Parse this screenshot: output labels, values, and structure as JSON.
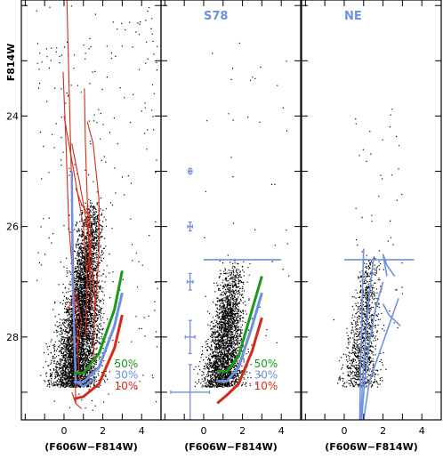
{
  "chart_data": {
    "type": "scatter",
    "ylabel": "F814W",
    "xlabel": "(F606W−F814W)",
    "xlim": [
      -2.2,
      5.0
    ],
    "ylim": [
      29.5,
      21.9
    ],
    "x_ticks": [
      -2,
      -1,
      0,
      1,
      2,
      3,
      4,
      5
    ],
    "x_tick_labels": [
      {
        "value": 0,
        "label": "0"
      },
      {
        "value": 2,
        "label": "2"
      },
      {
        "value": 4,
        "label": "4"
      }
    ],
    "y_ticks": [
      22,
      23,
      24,
      25,
      26,
      27,
      28,
      29
    ],
    "y_tick_labels": [
      {
        "value": 24,
        "label": "24"
      },
      {
        "value": 26,
        "label": "26"
      },
      {
        "value": 28,
        "label": "28"
      }
    ],
    "colors": {
      "points": "#000000",
      "c50": "#1a9a1a",
      "c30": "#6f8fdf",
      "c10": "#d42a1a",
      "panel_label": "#6f8fdf",
      "errorbars": "#6f8fdf",
      "tracks": "#d42a1a",
      "ne_tracks": "#7090e0"
    },
    "panels": [
      {
        "title": "",
        "dense_cloud": {
          "x_center": 0.9,
          "y_min": 25.5,
          "y_max": 28.9,
          "spread": 0.55
        },
        "sparse_points": {
          "x_range": [
            -1.5,
            4.8
          ],
          "y_range": [
            22.0,
            29.4
          ]
        },
        "completeness": [
          {
            "label": "50%",
            "color_key": "c50",
            "x": [
              0.5,
              1.0,
              1.8,
              2.6,
              3.0
            ],
            "y": [
              28.65,
              28.65,
              28.3,
              27.5,
              26.8
            ]
          },
          {
            "label": "30%",
            "color_key": "c30",
            "x": [
              0.5,
              1.0,
              1.8,
              2.6,
              3.0
            ],
            "y": [
              28.82,
              28.82,
              28.55,
              27.8,
              27.2
            ]
          },
          {
            "label": "10%",
            "color_key": "c10",
            "x": [
              0.5,
              1.0,
              1.8,
              2.6,
              3.0
            ],
            "y": [
              29.12,
              29.08,
              28.85,
              28.2,
              27.6
            ]
          }
        ],
        "blue_lines": [
          {
            "x": [
              0.4,
              0.45,
              0.6,
              1.0,
              1.6
            ],
            "y": [
              25.0,
              27.0,
              28.8,
              28.9,
              28.75
            ]
          }
        ],
        "legend": [
          {
            "label": "50%",
            "color_key": "c50",
            "x": 2.6,
            "y": 28.55
          },
          {
            "label": "30%",
            "color_key": "c30",
            "x": 2.6,
            "y": 28.75
          },
          {
            "label": "10%",
            "color_key": "c10",
            "x": 2.6,
            "y": 28.95
          }
        ]
      },
      {
        "title": "S78",
        "dense_cloud": {
          "x_center": 1.3,
          "y_min": 26.6,
          "y_max": 28.9,
          "spread": 0.5
        },
        "sparse_points": {
          "x_range": [
            0.0,
            4.5
          ],
          "y_range": [
            22.5,
            28.5
          ]
        },
        "horizontal_line": {
          "x": [
            0.0,
            4.0
          ],
          "y": 26.6
        },
        "errorbars": [
          {
            "x": -0.7,
            "y": 25.0,
            "dx": 0.1,
            "dy": 0.05
          },
          {
            "x": -0.7,
            "y": 26.0,
            "dx": 0.12,
            "dy": 0.08
          },
          {
            "x": -0.7,
            "y": 27.0,
            "dx": 0.15,
            "dy": 0.15
          },
          {
            "x": -0.7,
            "y": 28.0,
            "dx": 0.25,
            "dy": 0.3
          },
          {
            "x": -0.7,
            "y": 29.0,
            "dx": 1.0,
            "dy": 0.5
          }
        ],
        "completeness": [
          {
            "label": "50%",
            "color_key": "c50",
            "x": [
              0.7,
              1.2,
              1.8,
              2.5,
              3.0
            ],
            "y": [
              28.62,
              28.62,
              28.35,
              27.5,
              26.9
            ]
          },
          {
            "label": "30%",
            "color_key": "c30",
            "x": [
              0.7,
              1.2,
              1.8,
              2.5,
              3.0
            ],
            "y": [
              28.8,
              28.8,
              28.55,
              27.8,
              27.2
            ]
          },
          {
            "label": "10%",
            "color_key": "c10",
            "x": [
              0.7,
              1.2,
              1.8,
              2.5,
              3.0
            ],
            "y": [
              29.2,
              29.05,
              28.85,
              28.25,
              27.65
            ]
          }
        ],
        "legend": [
          {
            "label": "50%",
            "color_key": "c50",
            "x": 2.6,
            "y": 28.55
          },
          {
            "label": "30%",
            "color_key": "c30",
            "x": 2.6,
            "y": 28.75
          },
          {
            "label": "10%",
            "color_key": "c10",
            "x": 2.6,
            "y": 28.95
          }
        ]
      },
      {
        "title": "NE",
        "dense_cloud": {
          "x_center": 1.1,
          "y_min": 26.4,
          "y_max": 28.9,
          "spread": 0.45
        },
        "sparse_points": {
          "x_range": [
            0.5,
            3.0
          ],
          "y_range": [
            23.5,
            28.5
          ]
        },
        "horizontal_line": {
          "x": [
            0.0,
            3.6
          ],
          "y": 26.6
        },
        "blue_lines": [
          {
            "x": [
              0.8,
              0.85,
              0.9,
              0.95,
              1.0
            ],
            "y": [
              29.5,
              28.5,
              27.8,
              27.0,
              26.4
            ]
          },
          {
            "x": [
              0.85,
              0.95,
              1.1,
              1.3,
              1.5
            ],
            "y": [
              29.5,
              28.8,
              28.0,
              27.2,
              26.6
            ]
          },
          {
            "x": [
              0.9,
              1.05,
              1.3,
              1.6,
              2.0
            ],
            "y": [
              29.5,
              28.8,
              28.1,
              27.5,
              27.0
            ]
          },
          {
            "x": [
              1.0,
              1.3,
              1.8,
              2.3,
              2.8
            ],
            "y": [
              29.5,
              28.8,
              28.3,
              27.8,
              27.3
            ]
          },
          {
            "x": [
              2.2,
              2.1,
              2.0,
              2.2,
              2.6
            ],
            "y": [
              26.9,
              26.7,
              26.5,
              26.7,
              26.9
            ]
          },
          {
            "x": [
              2.0,
              2.3,
              2.9
            ],
            "y": [
              27.4,
              27.6,
              27.8
            ]
          }
        ]
      }
    ],
    "tracks": [
      {
        "x": [
          0.15,
          0.3,
          0.45,
          0.55,
          0.6
        ],
        "y": [
          21.9,
          24.0,
          26.0,
          28.0,
          29.2
        ]
      },
      {
        "x": [
          -0.05,
          0.1,
          0.25,
          0.6,
          0.8
        ],
        "y": [
          23.2,
          24.5,
          26.0,
          27.5,
          28.8
        ]
      },
      {
        "x": [
          0.0,
          0.5,
          1.0,
          1.2,
          1.1
        ],
        "y": [
          24.0,
          25.0,
          26.0,
          27.0,
          28.0
        ]
      },
      {
        "x": [
          0.4,
          0.8,
          1.3,
          1.6,
          1.5
        ],
        "y": [
          24.5,
          25.2,
          26.2,
          27.3,
          28.4
        ]
      },
      {
        "x": [
          1.05,
          1.1,
          1.2,
          1.3,
          1.4
        ],
        "y": [
          23.5,
          24.5,
          25.5,
          26.5,
          27.5
        ]
      },
      {
        "x": [
          1.2,
          1.5,
          1.8,
          1.8,
          1.6
        ],
        "y": [
          24.1,
          24.5,
          25.5,
          26.5,
          27.5
        ]
      },
      {
        "x": [
          0.2,
          0.6,
          0.9,
          0.7,
          0.3
        ],
        "y": [
          27.5,
          27.2,
          27.7,
          28.2,
          28.0
        ]
      },
      {
        "x": [
          0.6,
          0.9,
          1.3,
          1.4,
          1.2
        ],
        "y": [
          25.3,
          25.6,
          25.8,
          26.3,
          26.8
        ]
      },
      {
        "x": [
          0.4,
          0.6,
          0.9
        ],
        "y": [
          29.0,
          29.2,
          29.3
        ]
      }
    ]
  }
}
